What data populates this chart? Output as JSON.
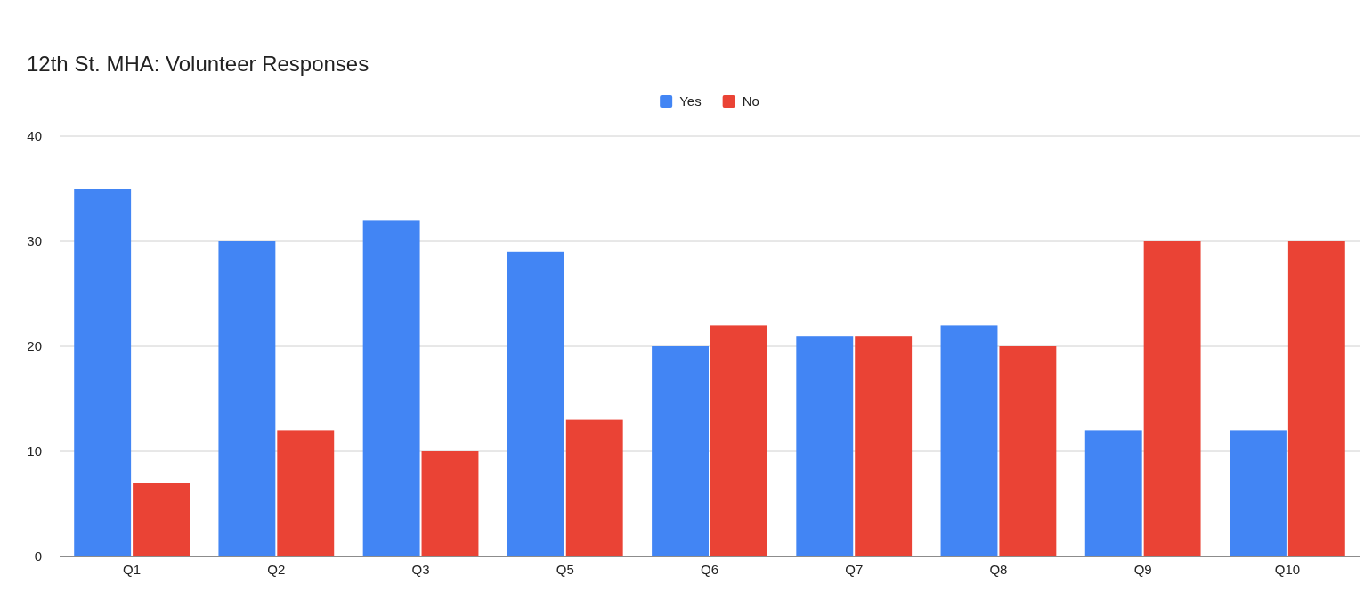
{
  "chart_data": {
    "type": "bar",
    "title": "12th St. MHA: Volunteer Responses",
    "categories": [
      "Q1",
      "Q2",
      "Q3",
      "Q5",
      "Q6",
      "Q7",
      "Q8",
      "Q9",
      "Q10"
    ],
    "series": [
      {
        "name": "Yes",
        "color": "#4285f4",
        "values": [
          35,
          30,
          32,
          29,
          20,
          21,
          22,
          12,
          12
        ]
      },
      {
        "name": "No",
        "color": "#ea4335",
        "values": [
          7,
          12,
          10,
          13,
          22,
          21,
          20,
          30,
          30
        ]
      }
    ],
    "ylim": [
      0,
      40
    ],
    "yticks": [
      0,
      10,
      20,
      30,
      40
    ],
    "grid": "y",
    "legend": "top"
  }
}
